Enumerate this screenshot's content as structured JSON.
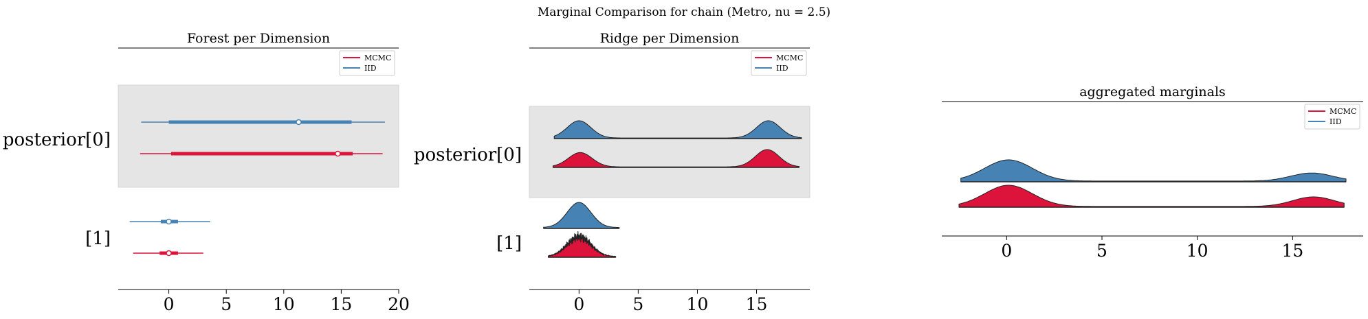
{
  "suptitle": "Marginal Comparison for chain (Metro, nu = 2.5)",
  "colors": {
    "MCMC": "#dc143c",
    "IID": "#4682b4",
    "band": "#e5e5e5",
    "outline": "#222222"
  },
  "chart_data": [
    {
      "type": "forest",
      "title": "Forest per Dimension",
      "xlim": [
        -4.4,
        20
      ],
      "xticks": [
        0,
        5,
        10,
        15,
        20
      ],
      "legend": {
        "placement": "top-right",
        "entries": [
          "MCMC",
          "IID"
        ]
      },
      "rows": [
        {
          "label": "posterior[0]",
          "shaded": true,
          "series": {
            "IID": {
              "whisker": [
                -2.4,
                18.8
              ],
              "iqr": [
                0.0,
                15.9
              ],
              "median": 11.3
            },
            "MCMC": {
              "whisker": [
                -2.5,
                18.6
              ],
              "iqr": [
                0.2,
                16.0
              ],
              "median": 14.7
            }
          }
        },
        {
          "label": "[1]",
          "shaded": false,
          "series": {
            "IID": {
              "whisker": [
                -3.4,
                3.6
              ],
              "iqr": [
                -0.7,
                0.8
              ],
              "median": 0.0
            },
            "MCMC": {
              "whisker": [
                -3.1,
                3.0
              ],
              "iqr": [
                -0.8,
                0.8
              ],
              "median": 0.0
            }
          }
        }
      ]
    },
    {
      "type": "ridge",
      "title": "Ridge per Dimension",
      "xlim": [
        -4.2,
        19.5
      ],
      "xticks": [
        0,
        5,
        10,
        15
      ],
      "legend": {
        "placement": "top-right",
        "entries": [
          "MCMC",
          "IID"
        ]
      },
      "rows": [
        {
          "label": "posterior[0]",
          "shaded": true,
          "series": {
            "IID": {
              "range": [
                -2.1,
                18.8
              ],
              "modes": [
                [
                  0.0,
                  1.0,
                  1.0
                ],
                [
                  16.0,
                  1.0,
                  1.0
                ]
              ]
            },
            "MCMC": {
              "range": [
                -2.2,
                18.6
              ],
              "modes": [
                [
                  0.1,
                  1.0,
                  0.95
                ],
                [
                  15.9,
                  1.0,
                  1.15
                ]
              ]
            }
          }
        },
        {
          "label": "[1]",
          "shaded": false,
          "series": {
            "IID": {
              "range": [
                -3.0,
                3.4
              ],
              "modes": [
                [
                  0.0,
                  1.0,
                  1.0
                ]
              ]
            },
            "MCMC": {
              "range": [
                -2.6,
                3.1
              ],
              "modes": [
                [
                  0.0,
                  1.0,
                  1.0
                ]
              ],
              "noisy": true
            }
          }
        }
      ]
    },
    {
      "type": "ridge",
      "title": "aggregated marginals",
      "xlim": [
        -3.4,
        18.7
      ],
      "xticks": [
        0,
        5,
        10,
        15
      ],
      "legend": {
        "placement": "top-right",
        "entries": [
          "MCMC",
          "IID"
        ]
      },
      "rows": [
        {
          "label": "",
          "shaded": false,
          "series": {
            "IID": {
              "range": [
                -2.4,
                17.8
              ],
              "modes": [
                [
                  0.1,
                  1.25,
                  1.0
                ],
                [
                  16.0,
                  1.1,
                  0.38
                ]
              ]
            },
            "MCMC": {
              "range": [
                -2.5,
                17.7
              ],
              "modes": [
                [
                  0.1,
                  1.25,
                  1.0
                ],
                [
                  16.1,
                  1.1,
                  0.45
                ]
              ]
            }
          }
        }
      ]
    }
  ]
}
